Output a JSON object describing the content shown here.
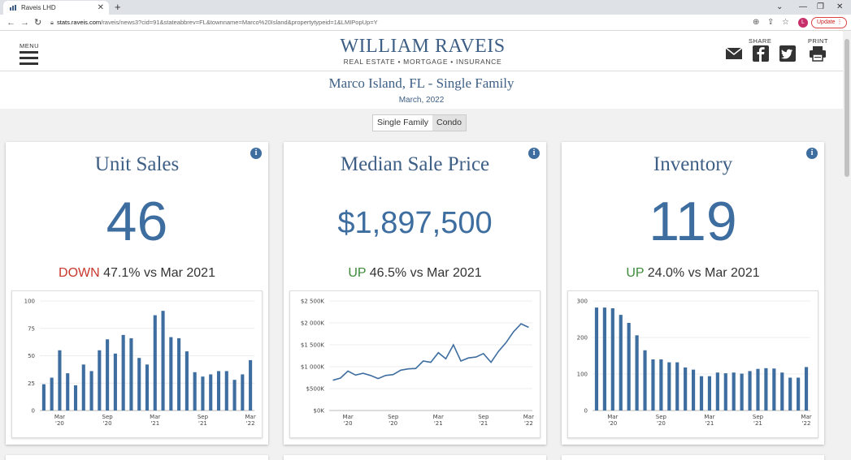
{
  "browser": {
    "tab_title": "Raveis LHD",
    "new_tab": "+",
    "url_host": "stats.raveis.com",
    "url_path": "/raveis/news3?cid=91&stateabbrev=FL&townname=Marco%20Island&propertytypeid=1&LMIPopUp=Y",
    "avatar_letter": "L",
    "update_label": "Update"
  },
  "header": {
    "menu_label": "MENU",
    "logo_name": "WILLIAM RAVEIS",
    "logo_sub": "REAL ESTATE • MORTGAGE • INSURANCE",
    "share_label": "SHARE",
    "print_label": "PRINT"
  },
  "page": {
    "title": "Marco Island, FL - Single Family",
    "date": "March, 2022"
  },
  "toggle": {
    "options": [
      "Single Family",
      "Condo"
    ],
    "selected": "Single Family"
  },
  "colors": {
    "accent": "#3e6ea0",
    "down": "#c8372d",
    "up": "#3d8a3a"
  },
  "cards": [
    {
      "title": "Unit Sales",
      "value": "46",
      "direction": "DOWN",
      "change": "47.1% vs Mar 2021"
    },
    {
      "title": "Median Sale Price",
      "value": "$1,897,500",
      "direction": "UP",
      "change": "46.5% vs Mar 2021"
    },
    {
      "title": "Inventory",
      "value": "119",
      "direction": "UP",
      "change": "24.0% vs Mar 2021"
    }
  ],
  "chart_data": [
    {
      "type": "bar",
      "title": "Unit Sales",
      "ylim": [
        0,
        100
      ],
      "yticks": [
        0,
        25,
        50,
        75,
        100
      ],
      "ytick_labels": [
        "0",
        "25",
        "50",
        "75",
        "100"
      ],
      "xtick_labels": [
        [
          "Mar",
          "'20"
        ],
        [
          "Sep",
          "'20"
        ],
        [
          "Mar",
          "'21"
        ],
        [
          "Sep",
          "'21"
        ],
        [
          "Mar",
          "'22"
        ]
      ],
      "xtick_index": [
        2,
        8,
        14,
        20,
        26
      ],
      "values": [
        24,
        30,
        55,
        34,
        23,
        42,
        36,
        55,
        65,
        52,
        69,
        66,
        48,
        42,
        87,
        91,
        67,
        66,
        54,
        35,
        31,
        33,
        36,
        36,
        28,
        33,
        46
      ]
    },
    {
      "type": "line",
      "title": "Median Sale Price",
      "ylim": [
        0,
        2500
      ],
      "yticks": [
        0,
        500,
        1000,
        1500,
        2000,
        2500
      ],
      "ytick_labels": [
        "$0K",
        "$500K",
        "$1 000K",
        "$1 500K",
        "$2 000K",
        "$2 500K"
      ],
      "xtick_labels": [
        [
          "Mar",
          "'20"
        ],
        [
          "Sep",
          "'20"
        ],
        [
          "Mar",
          "'21"
        ],
        [
          "Sep",
          "'21"
        ],
        [
          "Mar",
          "'22"
        ]
      ],
      "xtick_index": [
        2,
        8,
        14,
        20,
        26
      ],
      "values": [
        690,
        740,
        900,
        810,
        850,
        800,
        730,
        800,
        820,
        920,
        950,
        960,
        1130,
        1100,
        1320,
        1180,
        1500,
        1130,
        1200,
        1220,
        1300,
        1100,
        1350,
        1550,
        1800,
        1980,
        1898
      ]
    },
    {
      "type": "bar",
      "title": "Inventory",
      "ylim": [
        0,
        300
      ],
      "yticks": [
        0,
        100,
        200,
        300
      ],
      "ytick_labels": [
        "0",
        "100",
        "200",
        "300"
      ],
      "xtick_labels": [
        [
          "Mar",
          "'20"
        ],
        [
          "Sep",
          "'20"
        ],
        [
          "Mar",
          "'21"
        ],
        [
          "Sep",
          "'21"
        ],
        [
          "Mar",
          "'22"
        ]
      ],
      "xtick_index": [
        2,
        8,
        14,
        20,
        26
      ],
      "values": [
        282,
        282,
        280,
        262,
        240,
        206,
        165,
        140,
        140,
        132,
        132,
        118,
        112,
        94,
        94,
        104,
        102,
        104,
        101,
        108,
        114,
        116,
        115,
        104,
        90,
        90,
        119
      ]
    }
  ]
}
